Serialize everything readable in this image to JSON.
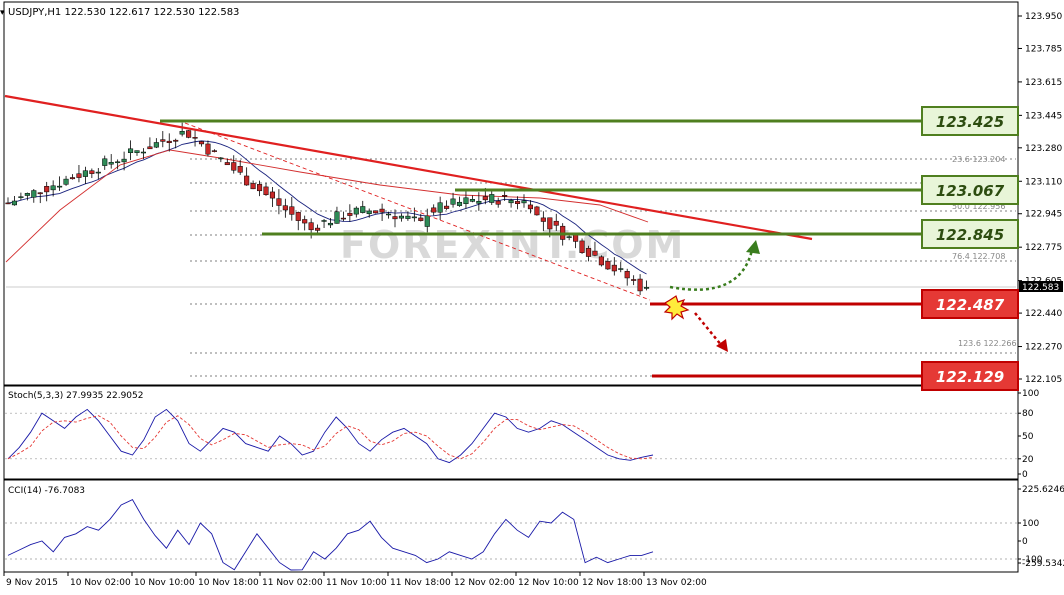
{
  "header": {
    "symbol_line": "USDJPY,H1  122.530 122.617 122.530 122.583"
  },
  "price_axis": {
    "ticks": [
      "123.950",
      "123.785",
      "123.615",
      "123.445",
      "123.280",
      "123.110",
      "122.945",
      "122.775",
      "122.605",
      "122.440",
      "122.270",
      "122.105"
    ],
    "current_price": "122.583"
  },
  "fib_labels": [
    {
      "text": "23.6   123.204"
    },
    {
      "text": "50.0   122.956"
    },
    {
      "text": "76.4   122.708"
    },
    {
      "text": "123.6 122.266"
    }
  ],
  "levels": {
    "resistance": [
      "123.425",
      "123.067",
      "122.845"
    ],
    "support": [
      "122.487",
      "122.129"
    ]
  },
  "watermark": "FOREXINT.COM",
  "stoch": {
    "label": "Stoch(5,3,3) 27.9935 22.9052",
    "ticks": [
      "100",
      "80",
      "50",
      "20",
      "0"
    ]
  },
  "cci": {
    "label": "CCI(14) -76.7083",
    "ticks": [
      "225.6246",
      "100",
      "0",
      "-100",
      "-259.5342"
    ]
  },
  "time_axis": [
    "9 Nov 2015",
    "10 Nov 02:00",
    "10 Nov 10:00",
    "10 Nov 18:00",
    "11 Nov 02:00",
    "11 Nov 10:00",
    "11 Nov 18:00",
    "12 Nov 02:00",
    "12 Nov 10:00",
    "12 Nov 18:00",
    "13 Nov 02:00"
  ],
  "colors": {
    "bull": "#2e8b57",
    "bear": "#c62828",
    "resistance_green": "#4f7f1f",
    "support_red": "#c00000",
    "trendline": "#e02020",
    "ma_blue": "#1a237e",
    "ma_red": "#d32f2f"
  }
}
